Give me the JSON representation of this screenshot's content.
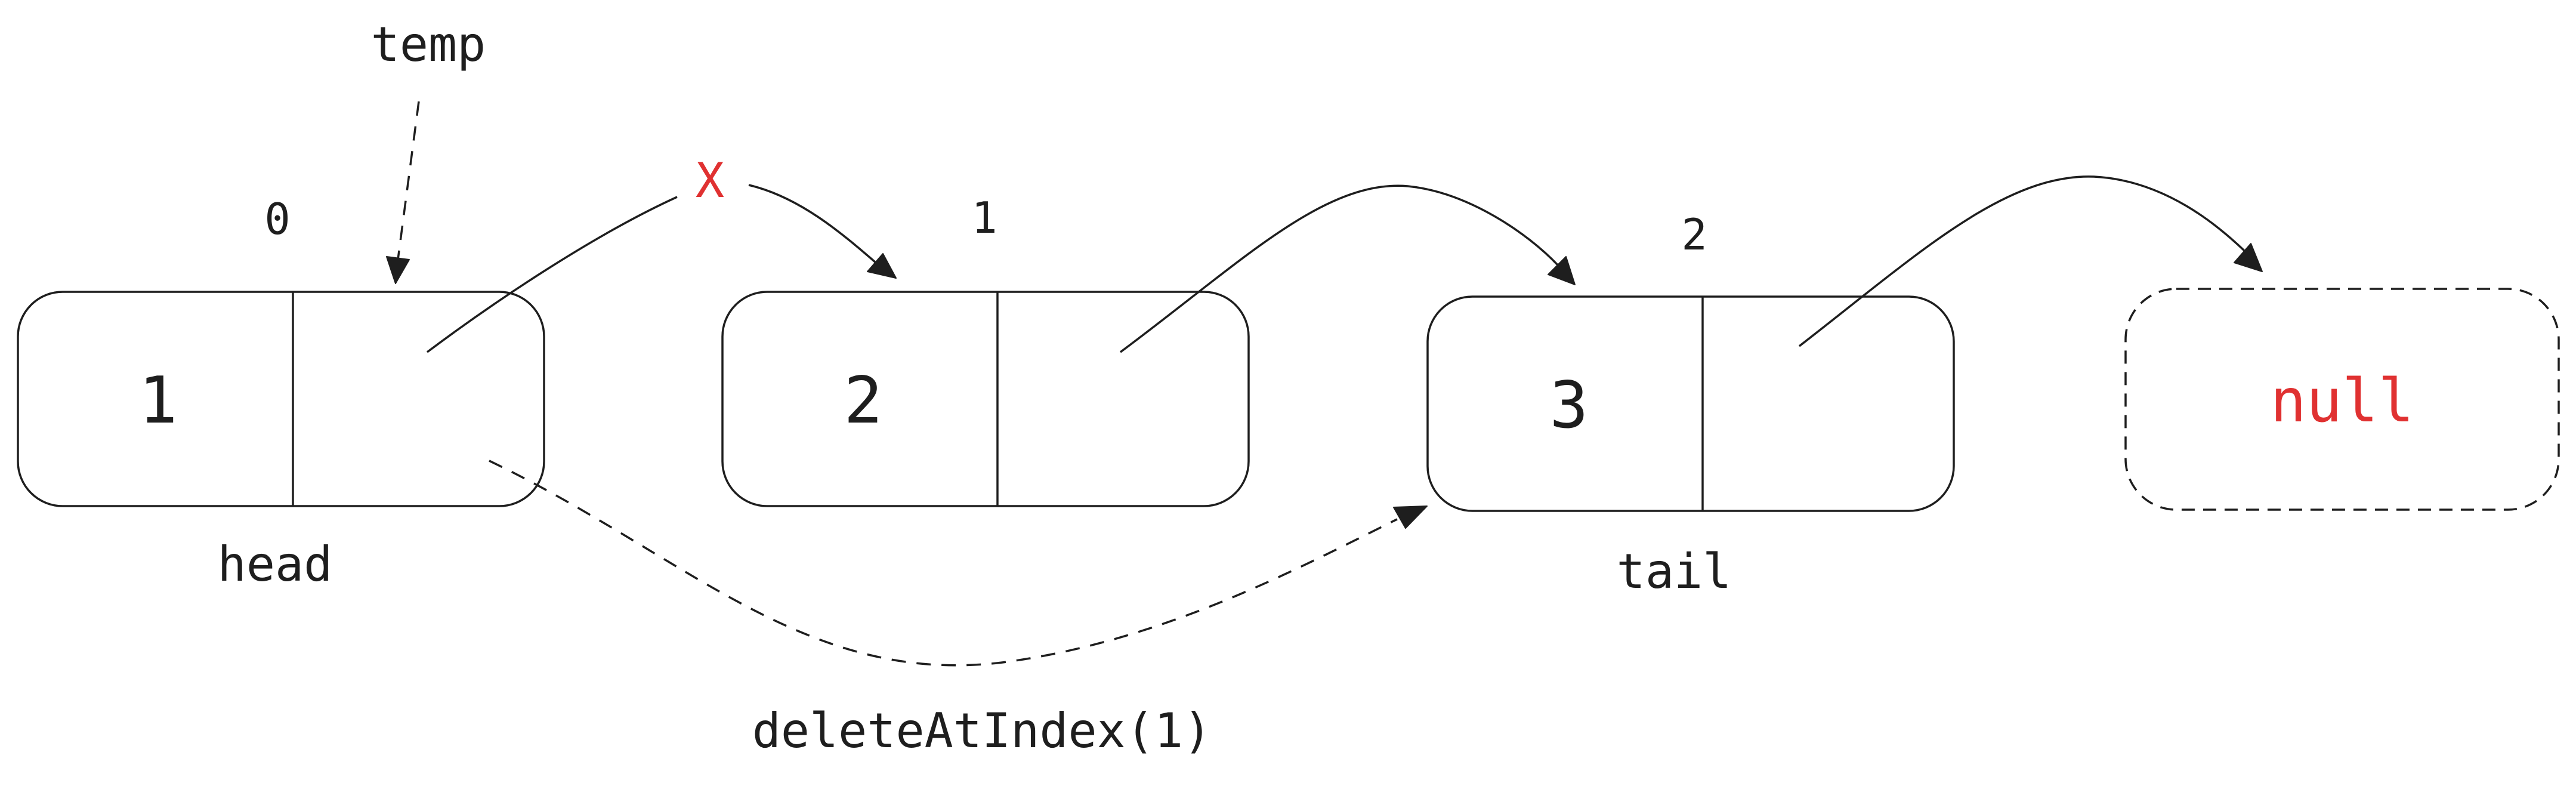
{
  "nodes": [
    {
      "value": "1",
      "index": "0"
    },
    {
      "value": "2",
      "index": "1"
    },
    {
      "value": "3",
      "index": "2"
    }
  ],
  "null_label": "null",
  "pointers": {
    "temp": "temp",
    "head": "head",
    "tail": "tail"
  },
  "removed_link_mark": "X",
  "operation": "deleteAtIndex(1)",
  "colors": {
    "stroke": "#1e1e1e",
    "highlight": "#e03131",
    "background": "#ffffff"
  }
}
